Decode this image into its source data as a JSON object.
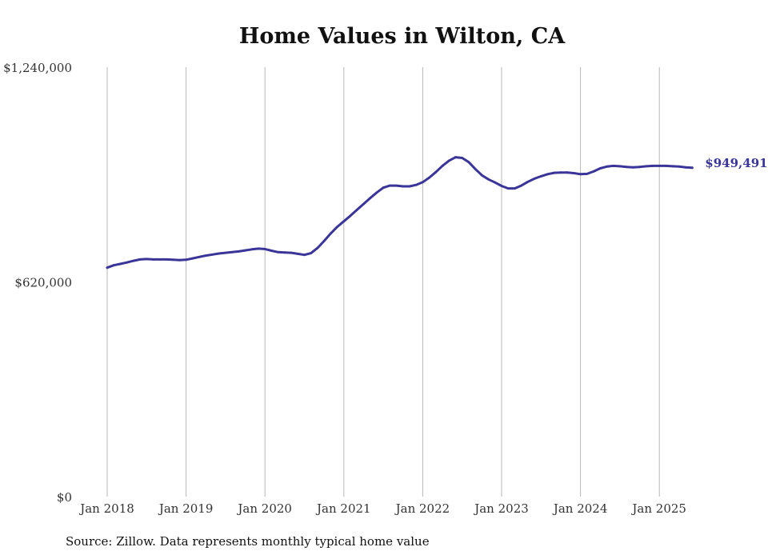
{
  "chart_data": {
    "type": "line",
    "title": "Home Values in Wilton, CA",
    "xlabel": "",
    "ylabel": "",
    "ylim": [
      0,
      1240000
    ],
    "y_ticks": [
      {
        "value": 0,
        "label": "$0"
      },
      {
        "value": 620000,
        "label": "$620,000"
      },
      {
        "value": 1240000,
        "label": "$1,240,000"
      }
    ],
    "x_ticks": [
      {
        "value": "2018-01",
        "label": "Jan 2018"
      },
      {
        "value": "2019-01",
        "label": "Jan 2019"
      },
      {
        "value": "2020-01",
        "label": "Jan 2020"
      },
      {
        "value": "2021-01",
        "label": "Jan 2021"
      },
      {
        "value": "2022-01",
        "label": "Jan 2022"
      },
      {
        "value": "2023-01",
        "label": "Jan 2023"
      },
      {
        "value": "2024-01",
        "label": "Jan 2024"
      },
      {
        "value": "2025-01",
        "label": "Jan 2025"
      }
    ],
    "grid": {
      "vertical": true,
      "horizontal": false
    },
    "series": [
      {
        "color": "#3a3596",
        "points": [
          [
            "2018-01",
            661000
          ],
          [
            "2018-02",
            668000
          ],
          [
            "2018-03",
            672000
          ],
          [
            "2018-04",
            676000
          ],
          [
            "2018-05",
            681000
          ],
          [
            "2018-06",
            685000
          ],
          [
            "2018-07",
            686000
          ],
          [
            "2018-08",
            685000
          ],
          [
            "2018-09",
            685000
          ],
          [
            "2018-10",
            685000
          ],
          [
            "2018-11",
            684000
          ],
          [
            "2018-12",
            683000
          ],
          [
            "2019-01",
            684000
          ],
          [
            "2019-02",
            688000
          ],
          [
            "2019-03",
            692000
          ],
          [
            "2019-04",
            696000
          ],
          [
            "2019-05",
            699000
          ],
          [
            "2019-06",
            702000
          ],
          [
            "2019-07",
            704000
          ],
          [
            "2019-08",
            706000
          ],
          [
            "2019-09",
            708000
          ],
          [
            "2019-10",
            711000
          ],
          [
            "2019-11",
            714000
          ],
          [
            "2019-12",
            716000
          ],
          [
            "2020-01",
            715000
          ],
          [
            "2020-02",
            710000
          ],
          [
            "2020-03",
            706000
          ],
          [
            "2020-04",
            705000
          ],
          [
            "2020-05",
            704000
          ],
          [
            "2020-06",
            701000
          ],
          [
            "2020-07",
            698000
          ],
          [
            "2020-08",
            703000
          ],
          [
            "2020-09",
            718000
          ],
          [
            "2020-10",
            738000
          ],
          [
            "2020-11",
            760000
          ],
          [
            "2020-12",
            779000
          ],
          [
            "2021-01",
            795000
          ],
          [
            "2021-02",
            811000
          ],
          [
            "2021-03",
            828000
          ],
          [
            "2021-04",
            845000
          ],
          [
            "2021-05",
            862000
          ],
          [
            "2021-06",
            878000
          ],
          [
            "2021-07",
            892000
          ],
          [
            "2021-08",
            898000
          ],
          [
            "2021-09",
            898000
          ],
          [
            "2021-10",
            896000
          ],
          [
            "2021-11",
            896000
          ],
          [
            "2021-12",
            900000
          ],
          [
            "2022-01",
            908000
          ],
          [
            "2022-02",
            921000
          ],
          [
            "2022-03",
            937000
          ],
          [
            "2022-04",
            955000
          ],
          [
            "2022-05",
            970000
          ],
          [
            "2022-06",
            980000
          ],
          [
            "2022-07",
            978000
          ],
          [
            "2022-08",
            966000
          ],
          [
            "2022-09",
            946000
          ],
          [
            "2022-10",
            928000
          ],
          [
            "2022-11",
            916000
          ],
          [
            "2022-12",
            907000
          ],
          [
            "2023-01",
            897000
          ],
          [
            "2023-02",
            890000
          ],
          [
            "2023-03",
            890000
          ],
          [
            "2023-04",
            898000
          ],
          [
            "2023-05",
            909000
          ],
          [
            "2023-06",
            918000
          ],
          [
            "2023-07",
            925000
          ],
          [
            "2023-08",
            931000
          ],
          [
            "2023-09",
            935000
          ],
          [
            "2023-10",
            936000
          ],
          [
            "2023-11",
            936000
          ],
          [
            "2023-12",
            934000
          ],
          [
            "2024-01",
            931000
          ],
          [
            "2024-02",
            932000
          ],
          [
            "2024-03",
            939000
          ],
          [
            "2024-04",
            948000
          ],
          [
            "2024-05",
            953000
          ],
          [
            "2024-06",
            955000
          ],
          [
            "2024-07",
            954000
          ],
          [
            "2024-08",
            952000
          ],
          [
            "2024-09",
            951000
          ],
          [
            "2024-10",
            952000
          ],
          [
            "2024-11",
            954000
          ],
          [
            "2024-12",
            955000
          ],
          [
            "2025-01",
            955000
          ],
          [
            "2025-02",
            955000
          ],
          [
            "2025-03",
            954000
          ],
          [
            "2025-04",
            953000
          ],
          [
            "2025-05",
            951000
          ],
          [
            "2025-06",
            949491
          ]
        ],
        "end_label": "$949,491"
      }
    ]
  },
  "source_note": "Source: Zillow. Data represents monthly typical home value"
}
